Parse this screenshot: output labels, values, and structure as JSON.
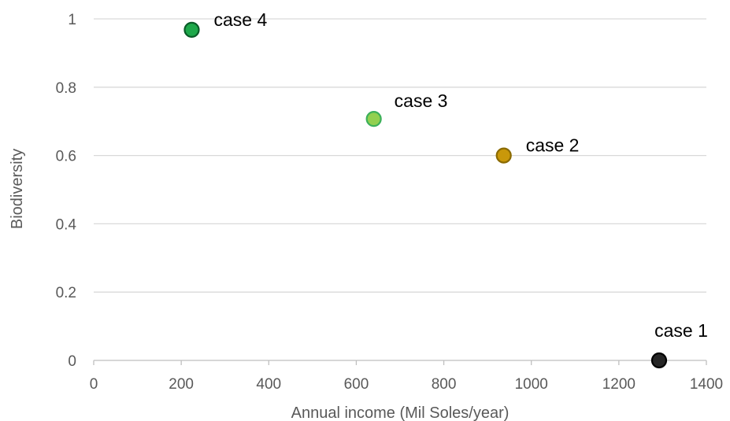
{
  "chart_data": {
    "type": "scatter",
    "title": "",
    "xlabel": "Annual  income (Mil Soles/year)",
    "ylabel": "Biodiversity",
    "xlim": [
      0,
      1400
    ],
    "ylim": [
      0,
      1
    ],
    "xticks": [
      0,
      200,
      400,
      600,
      800,
      1000,
      1200,
      1400
    ],
    "yticks": [
      0,
      0.2,
      0.4,
      0.6,
      0.8,
      1
    ],
    "xtick_labels": [
      "0",
      "200",
      "400",
      "600",
      "800",
      "1000",
      "1200",
      "1400"
    ],
    "ytick_labels": [
      "0",
      "0.2",
      "0.4",
      "0.6",
      "0.8",
      "1"
    ],
    "grid": "horizontal",
    "points": [
      {
        "label": "case 1",
        "x": 1292,
        "y": 0.0,
        "color": "#262626",
        "stroke": "#000000",
        "label_pos": "above"
      },
      {
        "label": "case 2",
        "x": 937,
        "y": 0.6,
        "color": "#c9980a",
        "stroke": "#8a6a00",
        "label_pos": "right"
      },
      {
        "label": "case 3",
        "x": 640,
        "y": 0.707,
        "color": "#92d050",
        "stroke": "#3cb05a",
        "label_pos": "upper-right"
      },
      {
        "label": "case 4",
        "x": 224,
        "y": 0.968,
        "color": "#1ea84a",
        "stroke": "#0a5c28",
        "label_pos": "right"
      }
    ]
  }
}
